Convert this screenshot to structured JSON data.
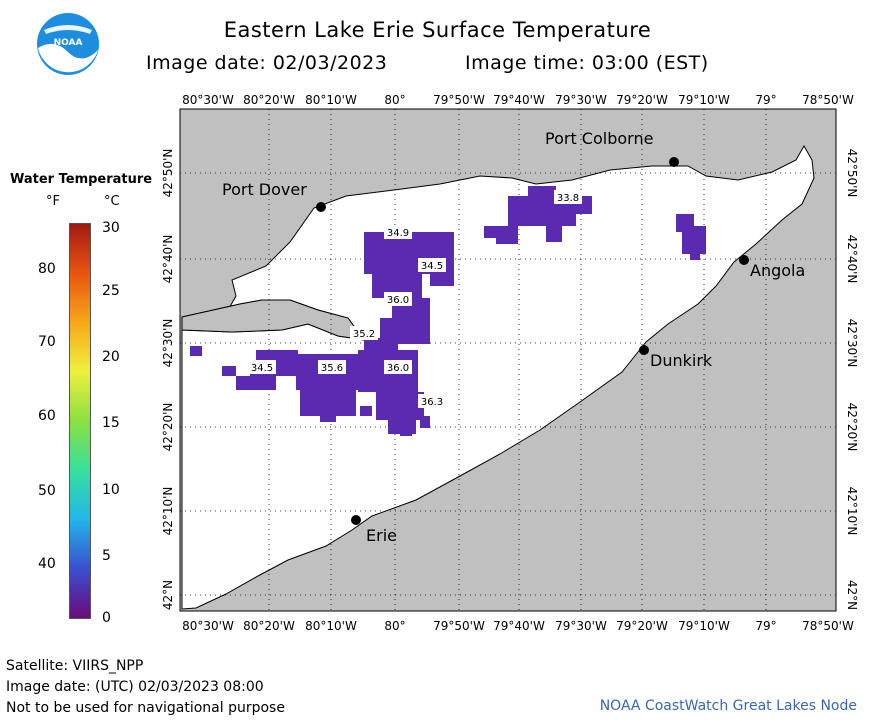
{
  "header": {
    "title": "Eastern Lake Erie Surface Temperature",
    "image_date": "Image date: 02/03/2023",
    "image_time": "Image time: 03:00 (EST)",
    "logo_text": "NOAA"
  },
  "legend": {
    "title": "Water Temperature",
    "unit_f": "°F",
    "unit_c": "°C",
    "fahrenheit_ticks": [
      "80",
      "70",
      "60",
      "50",
      "40"
    ],
    "celsius_ticks": [
      "30",
      "25",
      "20",
      "15",
      "10",
      "5",
      "0"
    ],
    "colors": [
      "#6a0a7a",
      "#3a4fd0",
      "#22b6e8",
      "#38e0a0",
      "#8ae040",
      "#eef040",
      "#f8a818",
      "#e85410",
      "#a11a10"
    ]
  },
  "map": {
    "lon_labels": [
      "80°30'W",
      "80°20'W",
      "80°10'W",
      "80°",
      "79°50'W",
      "79°40'W",
      "79°30'W",
      "79°20'W",
      "79°10'W",
      "79°",
      "78°50'W"
    ],
    "lat_labels": [
      "42°50'N",
      "42°40'N",
      "42°30'N",
      "42°20'N",
      "42°10'N",
      "42°N"
    ],
    "cities": [
      {
        "name": "Port Colborne"
      },
      {
        "name": "Port Dover"
      },
      {
        "name": "Angola"
      },
      {
        "name": "Dunkirk"
      },
      {
        "name": "Erie"
      }
    ],
    "temperature_labels": [
      "33.8",
      "34.9",
      "34.5",
      "36.0",
      "35.2",
      "34.5",
      "35.6",
      "36.0",
      "36.3"
    ],
    "land_color": "#c0c0c0",
    "water_color": "#ffffff",
    "sst_color": "#5a2ab0"
  },
  "footer": {
    "satellite": "Satellite: VIIRS_NPP",
    "utc_date": "Image date: (UTC) 02/03/2023  08:00",
    "disclaimer": "Not to be used for navigational purpose",
    "credit": "NOAA CoastWatch Great Lakes Node"
  }
}
